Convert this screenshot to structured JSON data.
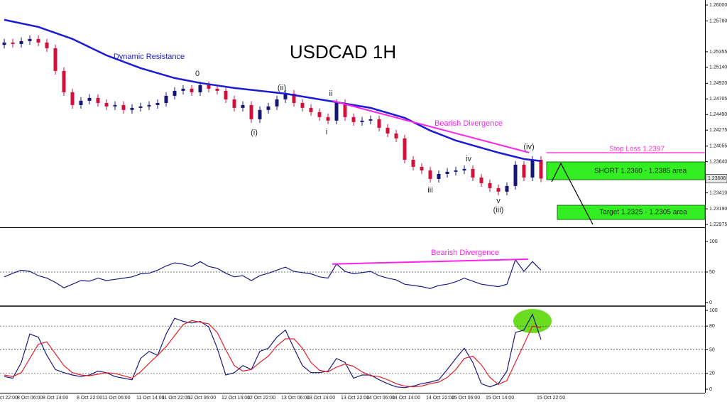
{
  "chart_data": [
    {
      "type": "candlestick",
      "title": "USDCAD 1H",
      "categories": [
        "ct 22:00",
        null,
        "8 Oct 06:00",
        null,
        null,
        "8 Oct 14:00",
        null,
        null,
        null,
        "8 Oct 22:00",
        null,
        null,
        "11 Oct 06:00",
        null,
        null,
        null,
        "11 Oct 14:00",
        null,
        null,
        "11 Oct 22:00",
        null,
        null,
        "12 Oct 06:00",
        null,
        null,
        null,
        "12 Oct 14:00",
        null,
        null,
        "12 Oct 22:00",
        null,
        null,
        null,
        "13 Oct 06:00",
        null,
        null,
        "13 Oct 14:00",
        null,
        null,
        null,
        "13 Oct 22:00",
        null,
        null,
        "14 Oct 06:00",
        null,
        null,
        "14 Oct 14:00",
        null,
        null,
        null,
        "14 Oct 22:00",
        null,
        null,
        "15 Oct 06:00",
        null,
        null,
        null,
        "15 Oct 14:00",
        null,
        null,
        null,
        null,
        null,
        "15 Oct 22:00"
      ],
      "open": [
        1.2545,
        1.25483,
        1.25463,
        1.25502,
        1.25532,
        1.25483,
        1.25404,
        1.25091,
        1.24797,
        1.24621,
        1.2468,
        1.24719,
        1.2465,
        1.24602,
        1.24621,
        1.24553,
        1.24582,
        1.24602,
        1.24621,
        1.2465,
        1.24748,
        1.24817,
        1.24846,
        1.24797,
        1.24895,
        1.24846,
        1.24817,
        1.24699,
        1.24582,
        1.24621,
        1.24425,
        1.24553,
        1.24602,
        1.24699,
        1.24778,
        1.2465,
        1.24582,
        1.24523,
        1.24455,
        1.24406,
        1.2465,
        1.24455,
        1.24386,
        1.24406,
        1.24425,
        1.24308,
        1.24229,
        1.24161,
        1.23867,
        1.23769,
        1.2372,
        1.23603,
        1.23671,
        1.23701,
        1.2372,
        1.2374,
        1.23622,
        1.23544,
        1.23476,
        1.23427,
        1.23505,
        1.23799,
        1.23622,
        1.23867
      ],
      "high": [
        1.25533,
        1.25533,
        1.25552,
        1.25582,
        1.25582,
        1.25533,
        1.25454,
        1.25141,
        1.24847,
        1.2473,
        1.24769,
        1.24769,
        1.247,
        1.24671,
        1.24671,
        1.24632,
        1.24652,
        1.24671,
        1.247,
        1.24798,
        1.24867,
        1.24896,
        1.24896,
        1.24945,
        1.24945,
        1.24896,
        1.24867,
        1.24749,
        1.24671,
        1.24671,
        1.24603,
        1.24652,
        1.24749,
        1.24828,
        1.24828,
        1.247,
        1.24632,
        1.24573,
        1.24505,
        1.247,
        1.247,
        1.24505,
        1.24456,
        1.24475,
        1.24475,
        1.24358,
        1.24279,
        1.24211,
        1.23917,
        1.23819,
        1.2377,
        1.23721,
        1.23751,
        1.2377,
        1.2379,
        1.2379,
        1.23672,
        1.23594,
        1.23526,
        1.23555,
        1.23849,
        1.23849,
        1.23917,
        1.23917
      ],
      "low": [
        1.254,
        1.25413,
        1.25413,
        1.25452,
        1.25433,
        1.25354,
        1.25041,
        1.24747,
        1.24571,
        1.24571,
        1.2463,
        1.246,
        1.24552,
        1.24552,
        1.24503,
        1.24503,
        1.24532,
        1.24552,
        1.24571,
        1.246,
        1.24698,
        1.24767,
        1.24747,
        1.24747,
        1.24796,
        1.24767,
        1.24649,
        1.24532,
        1.24532,
        1.24375,
        1.24375,
        1.24503,
        1.24552,
        1.24649,
        1.246,
        1.24532,
        1.24473,
        1.24405,
        1.24356,
        1.24356,
        1.24405,
        1.24336,
        1.24336,
        1.24356,
        1.24258,
        1.24179,
        1.24111,
        1.23817,
        1.23719,
        1.2367,
        1.23553,
        1.23553,
        1.23621,
        1.23651,
        1.2367,
        1.23572,
        1.23494,
        1.23426,
        1.23377,
        1.23377,
        1.23455,
        1.23572,
        1.23572,
        1.23558
      ],
      "close": [
        1.25483,
        1.25463,
        1.25502,
        1.25532,
        1.25483,
        1.25404,
        1.25091,
        1.24797,
        1.24621,
        1.2468,
        1.24719,
        1.2465,
        1.24602,
        1.24621,
        1.24553,
        1.24582,
        1.24602,
        1.24621,
        1.2465,
        1.24748,
        1.24817,
        1.24846,
        1.24797,
        1.24895,
        1.24846,
        1.24817,
        1.24699,
        1.24582,
        1.24621,
        1.24425,
        1.24553,
        1.24602,
        1.24699,
        1.24778,
        1.2465,
        1.24582,
        1.24523,
        1.24455,
        1.24406,
        1.2465,
        1.24455,
        1.24386,
        1.24406,
        1.24425,
        1.24308,
        1.24229,
        1.24161,
        1.23867,
        1.23769,
        1.2372,
        1.23603,
        1.23671,
        1.23701,
        1.2372,
        1.2374,
        1.23622,
        1.23544,
        1.23476,
        1.23427,
        1.23505,
        1.23799,
        1.23622,
        1.23867,
        1.23608
      ],
      "up_color": "#16167a",
      "down_color": "#d2103c",
      "ylim": [
        1.22936,
        1.26069
      ],
      "yticks": [
        {
          "value": 1.26,
          "label": "1.26000"
        },
        {
          "value": 1.2578,
          "label": "1.25780"
        },
        {
          "value": 1.25355,
          "label": "1.25355"
        },
        {
          "value": 1.2514,
          "label": "1.25140"
        },
        {
          "value": 1.2492,
          "label": "1.24920"
        },
        {
          "value": 1.24705,
          "label": "1.24705"
        },
        {
          "value": 1.2449,
          "label": "1.24490"
        },
        {
          "value": 1.24275,
          "label": "1.24275"
        },
        {
          "value": 1.24055,
          "label": "1.24055"
        },
        {
          "value": 1.2384,
          "label": "1.23840"
        },
        {
          "value": 1.2341,
          "label": "1.23410"
        },
        {
          "value": 1.2319,
          "label": "1.23190"
        },
        {
          "value": 1.22975,
          "label": "1.22975"
        }
      ],
      "last_price": {
        "value": 1.23608,
        "label": "1.23608"
      },
      "overlays": [
        {
          "color": "#1b1bd6",
          "x": [
            0,
            4,
            8,
            12,
            16,
            20,
            23,
            27,
            33,
            38,
            43,
            47,
            50,
            53,
            58,
            61,
            63
          ],
          "values": [
            1.25796,
            1.25698,
            1.25532,
            1.25306,
            1.2513,
            1.24993,
            1.24925,
            1.24856,
            1.24778,
            1.2468,
            1.24582,
            1.24445,
            1.24269,
            1.24132,
            1.23965,
            1.23877,
            1.23848
          ]
        },
        {
          "color": "#ff22ee",
          "x": [
            38.5,
            61.6
          ],
          "values": [
            1.2468,
            1.23965
          ]
        }
      ],
      "annotations": [
        "Dynamic Resistance",
        "Bearish Divergence"
      ],
      "wave_labels": [
        "0",
        "(i)",
        "(ii)",
        "i",
        "ii",
        "iii",
        "iv",
        "v",
        "(iii)",
        "(iv)"
      ],
      "trade": {
        "stop_loss": "Stop Loss 1.2397",
        "short": "SHORT 1.2360 - 1.2385 area",
        "target": "Target 1.2325 - 1.2305 area"
      }
    },
    {
      "type": "line",
      "series": [
        {
          "color": "#1a1a80",
          "values": [
            42,
            48,
            53,
            51,
            44,
            40,
            33,
            24,
            30,
            36,
            35,
            40,
            36,
            38,
            40,
            42,
            47,
            48,
            53,
            60,
            65,
            63,
            59,
            67,
            59,
            56,
            48,
            42,
            44,
            36,
            44,
            48,
            53,
            58,
            51,
            49,
            47,
            42,
            40,
            63,
            51,
            47,
            49,
            51,
            44,
            40,
            37,
            30,
            28,
            26,
            23,
            28,
            30,
            34,
            40,
            35,
            30,
            28,
            26,
            30,
            70,
            51,
            67,
            53
          ]
        }
      ],
      "ylim": [
        -4.7,
        120.9
      ],
      "yticks": [
        0,
        50,
        100
      ],
      "grid": true,
      "overlays": [
        {
          "color": "#ff22ee",
          "x": [
            38.5,
            61.5
          ],
          "values": [
            63,
            71
          ]
        }
      ],
      "annotations": [
        "Bearish Divergence"
      ]
    },
    {
      "type": "line",
      "series": [
        {
          "color": "#1a1a80",
          "values": [
            16,
            14,
            34,
            70,
            66,
            43,
            25,
            21,
            18,
            16,
            18,
            23,
            21,
            16,
            14,
            12,
            39,
            48,
            43,
            70,
            90,
            86,
            84,
            86,
            79,
            52,
            18,
            21,
            30,
            25,
            48,
            52,
            66,
            75,
            52,
            30,
            21,
            21,
            23,
            39,
            34,
            14,
            18,
            18,
            12,
            7,
            3,
            2,
            4,
            7,
            9,
            12,
            25,
            39,
            52,
            34,
            7,
            3,
            7,
            23,
            72,
            75,
            95,
            63
          ]
        },
        {
          "color": "#e0202a",
          "values": [
            18,
            16,
            21,
            39,
            57,
            60,
            45,
            30,
            21,
            18,
            17,
            19,
            21,
            20,
            17,
            14,
            22,
            33,
            43,
            54,
            68,
            82,
            87,
            85,
            83,
            72,
            50,
            30,
            23,
            25,
            34,
            42,
            55,
            64,
            64,
            52,
            34,
            24,
            22,
            28,
            32,
            29,
            22,
            17,
            16,
            12,
            7,
            4,
            3,
            4,
            7,
            9,
            15,
            25,
            39,
            42,
            31,
            15,
            6,
            11,
            34,
            57,
            80,
            78
          ]
        }
      ],
      "ylim": [
        -4.5,
        104.5
      ],
      "yticks": [
        0,
        20,
        50,
        80,
        100
      ],
      "grid": true
    }
  ]
}
